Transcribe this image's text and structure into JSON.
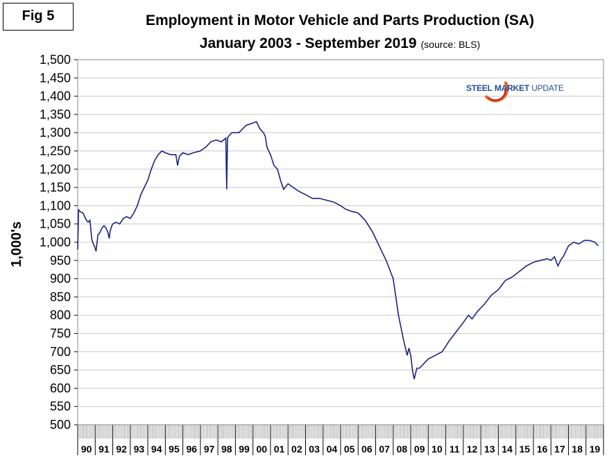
{
  "fig_label": "Fig 5",
  "title_line1": "Employment in Motor Vehicle and Parts Production (SA)",
  "title_line2": "January 2003 - September 2019",
  "source_note": "(source: BLS)",
  "logo": {
    "word1": "STEEL",
    "word2": "MARKET",
    "word3": "UPDATE"
  },
  "chart_data": {
    "type": "line",
    "ylabel": "1,000's",
    "ylim": [
      500,
      1500
    ],
    "yticks": [
      500,
      550,
      600,
      650,
      700,
      750,
      800,
      850,
      900,
      950,
      1000,
      1050,
      1100,
      1150,
      1200,
      1250,
      1300,
      1350,
      1400,
      1450,
      1500
    ],
    "ytick_labels": [
      "500",
      "550",
      "600",
      "650",
      "700",
      "750",
      "800",
      "850",
      "900",
      "950",
      "1,000",
      "1,050",
      "1,100",
      "1,150",
      "1,200",
      "1,250",
      "1,300",
      "1,350",
      "1,400",
      "1,450",
      "1,500"
    ],
    "xlim": [
      1990.0,
      2020.0
    ],
    "xtick_labels": [
      "90",
      "91",
      "92",
      "93",
      "94",
      "95",
      "96",
      "97",
      "98",
      "99",
      "00",
      "01",
      "02",
      "03",
      "04",
      "05",
      "06",
      "07",
      "08",
      "09",
      "10",
      "11",
      "12",
      "13",
      "14",
      "15",
      "16",
      "17",
      "18",
      "19"
    ],
    "grid": "horizontal",
    "line_color": "#1a237e",
    "series": [
      {
        "x": [
          1990.0,
          1990.05,
          1990.1,
          1990.3,
          1990.5,
          1990.6,
          1990.7,
          1990.8,
          1990.85,
          1990.95,
          1991.05,
          1991.15,
          1991.25,
          1991.4,
          1991.5,
          1991.6,
          1991.7,
          1991.8,
          1991.85,
          1991.95,
          1992.0,
          1992.2,
          1992.4,
          1992.6,
          1992.8,
          1993.0,
          1993.2,
          1993.4,
          1993.6,
          1993.8,
          1994.0,
          1994.2,
          1994.4,
          1994.6,
          1994.8,
          1995.0,
          1995.3,
          1995.6,
          1995.7,
          1995.8,
          1996.0,
          1996.3,
          1996.6,
          1997.0,
          1997.3,
          1997.6,
          1997.9,
          1998.2,
          1998.45,
          1998.5,
          1998.55,
          1998.6,
          1998.8,
          1999.2,
          1999.6,
          1999.9,
          2000.2,
          2000.4,
          2000.6,
          2000.7,
          2000.8,
          2001.0,
          2001.2,
          2001.4,
          2001.6,
          2001.75,
          2002.0,
          2002.3,
          2002.6,
          2003.0,
          2003.4,
          2003.8,
          2004.2,
          2004.6,
          2005.0,
          2005.3,
          2005.6,
          2006.0,
          2006.4,
          2006.8,
          2007.2,
          2007.6,
          2008.0,
          2008.3,
          2008.6,
          2008.8,
          2008.9,
          2009.0,
          2009.1,
          2009.2,
          2009.35,
          2009.5,
          2009.7,
          2010.0,
          2010.4,
          2010.8,
          2011.2,
          2011.6,
          2012.0,
          2012.3,
          2012.5,
          2012.8,
          2013.2,
          2013.6,
          2014.0,
          2014.4,
          2014.8,
          2015.2,
          2015.6,
          2016.0,
          2016.4,
          2016.8,
          2017.0,
          2017.2,
          2017.4,
          2017.6,
          2017.7,
          2018.0,
          2018.3,
          2018.6,
          2018.9,
          2019.2,
          2019.5,
          2019.7
        ],
        "y": [
          980,
          1090,
          1085,
          1080,
          1060,
          1055,
          1060,
          1010,
          1000,
          990,
          975,
          1020,
          1025,
          1040,
          1045,
          1040,
          1030,
          1010,
          1030,
          1045,
          1050,
          1055,
          1050,
          1065,
          1070,
          1065,
          1080,
          1100,
          1130,
          1150,
          1170,
          1200,
          1225,
          1240,
          1250,
          1245,
          1240,
          1240,
          1210,
          1235,
          1245,
          1240,
          1245,
          1250,
          1260,
          1275,
          1280,
          1275,
          1285,
          1145,
          1285,
          1290,
          1300,
          1300,
          1320,
          1325,
          1330,
          1310,
          1300,
          1290,
          1260,
          1240,
          1210,
          1200,
          1165,
          1145,
          1160,
          1150,
          1140,
          1130,
          1120,
          1120,
          1115,
          1110,
          1100,
          1090,
          1085,
          1080,
          1060,
          1030,
          990,
          950,
          900,
          800,
          730,
          690,
          710,
          690,
          650,
          625,
          655,
          655,
          665,
          680,
          690,
          700,
          730,
          755,
          780,
          800,
          790,
          810,
          830,
          855,
          870,
          895,
          905,
          920,
          935,
          945,
          950,
          955,
          950,
          960,
          935,
          955,
          960,
          990,
          1000,
          995,
          1005,
          1005,
          1000,
          990
        ]
      }
    ]
  }
}
